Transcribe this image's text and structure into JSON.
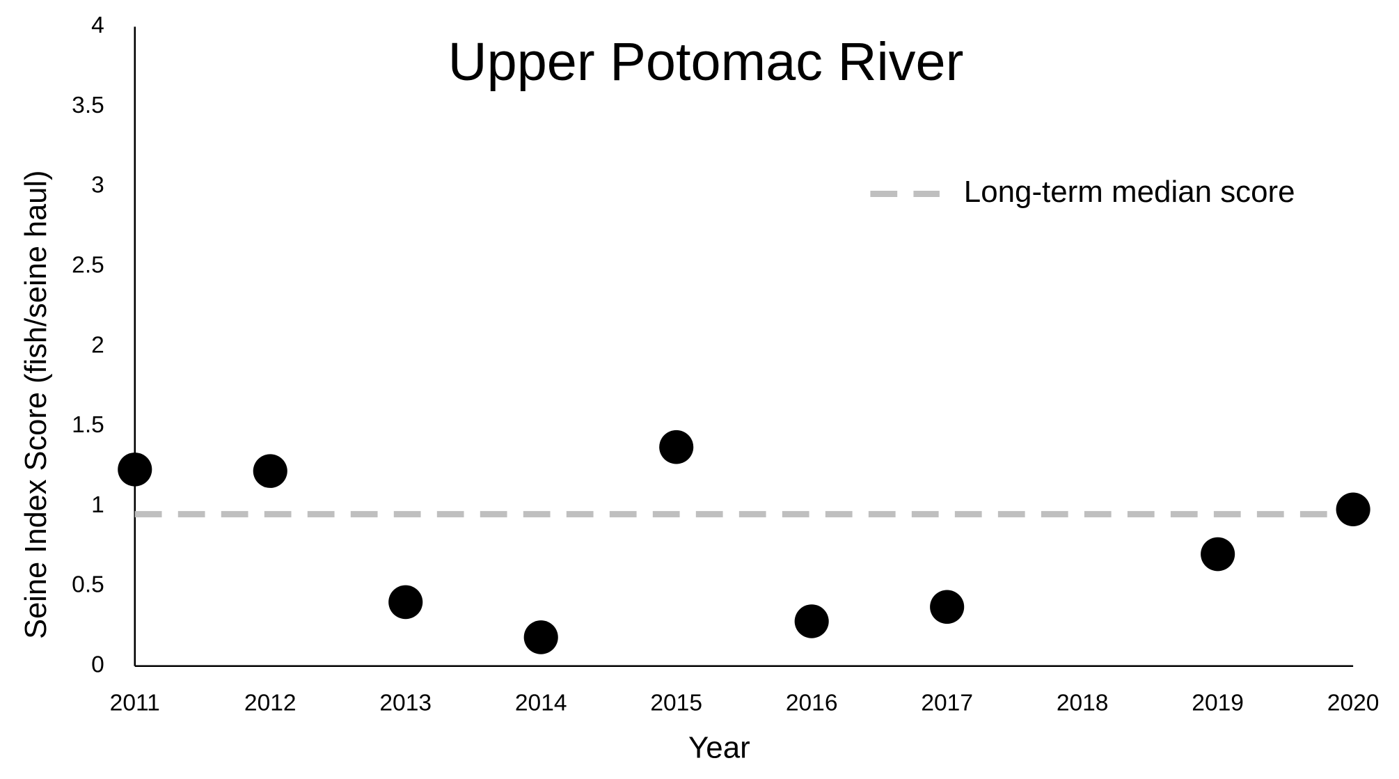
{
  "chart_data": {
    "type": "scatter",
    "title": "Upper Potomac River",
    "xlabel": "Year",
    "ylabel": "Seine Index Score (fish/seine haul)",
    "x": [
      2011,
      2012,
      2013,
      2014,
      2015,
      2016,
      2017,
      2019,
      2020
    ],
    "values": [
      1.23,
      1.22,
      0.4,
      0.18,
      1.37,
      0.28,
      0.37,
      0.7,
      0.98
    ],
    "color": "#000000",
    "xlim": [
      2011,
      2020
    ],
    "xticks": [
      2011,
      2012,
      2013,
      2014,
      2015,
      2016,
      2017,
      2018,
      2019,
      2020
    ],
    "ylim": [
      0,
      4
    ],
    "yticks": [
      0,
      0.5,
      1,
      1.5,
      2,
      2.5,
      3,
      3.5,
      4
    ],
    "grid": false,
    "reference_line": {
      "name": "Long-term median score",
      "value": 0.95,
      "color": "#bfbfbf"
    },
    "legend": "upper right"
  }
}
